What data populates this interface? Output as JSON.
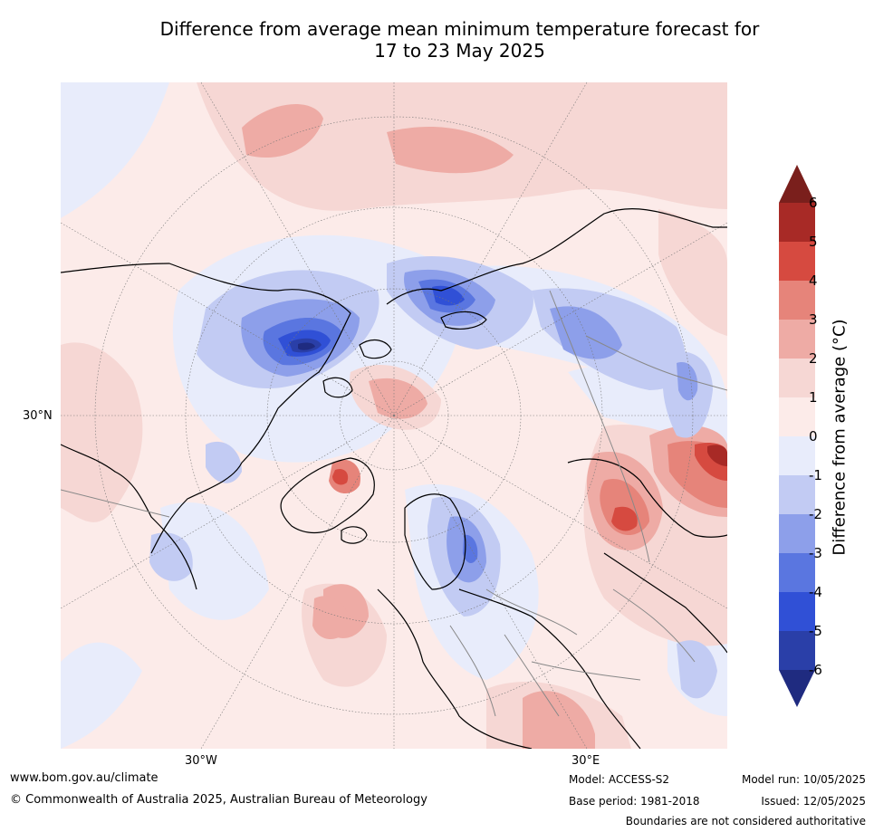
{
  "title": {
    "line1": "Difference from average mean minimum temperature forecast for",
    "line2": "17 to 23 May 2025"
  },
  "map": {
    "projection": "north polar stereographic",
    "labels": {
      "lat_30n": "30°N",
      "lon_30w": "30°W",
      "lon_30e": "30°E"
    }
  },
  "colorbar": {
    "label": "Difference from average (°C)",
    "ticks": [
      "6",
      "5",
      "4",
      "3",
      "2",
      "1",
      "0",
      "-1",
      "-2",
      "-3",
      "-4",
      "-5",
      "-6"
    ],
    "colors": {
      "above_6": "#7a1f1c",
      "5_to_6": "#a82a26",
      "4_to_5": "#d64a40",
      "3_to_4": "#e6847a",
      "2_to_3": "#eeaba5",
      "1_to_2": "#f6d7d4",
      "0_to_1": "#fcebe9",
      "minus1_to_0": "#e8ecfb",
      "minus2_to_minus1": "#c2cbf3",
      "minus3_to_minus2": "#8d9fea",
      "minus4_to_minus3": "#5a76e0",
      "minus5_to_minus4": "#3050d6",
      "minus6_to_minus5": "#2a3fa8",
      "below_minus6": "#1f2b80"
    }
  },
  "footer": {
    "website": "www.bom.gov.au/climate",
    "copyright": "© Commonwealth of Australia 2025, Australian Bureau of Meteorology",
    "model": "Model: ACCESS-S2",
    "base_period": "Base period: 1981-2018",
    "model_run": "Model run: 10/05/2025",
    "issued": "Issued: 12/05/2025",
    "disclaimer": "Boundaries are not considered authoritative"
  }
}
